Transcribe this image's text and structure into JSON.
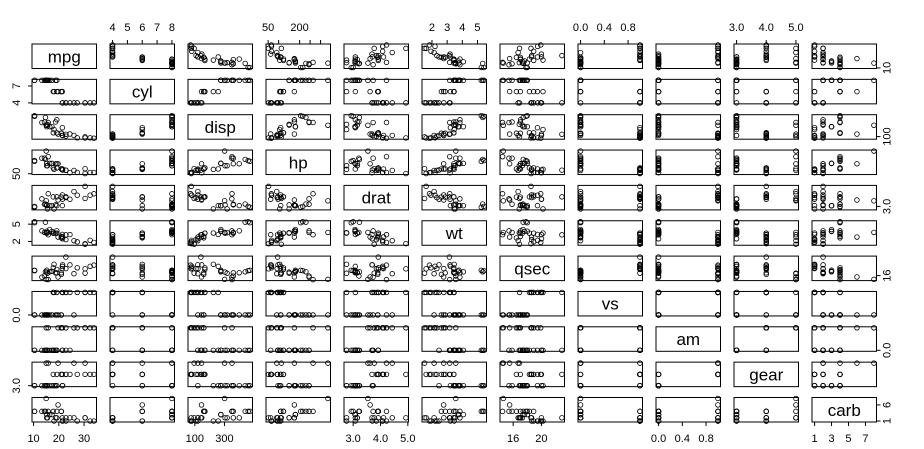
{
  "chart_data": {
    "type": "scatter",
    "title": "",
    "variables": [
      "mpg",
      "cyl",
      "disp",
      "hp",
      "drat",
      "wt",
      "qsec",
      "vs",
      "am",
      "gear",
      "carb"
    ],
    "axis_ticks": {
      "top": [
        {
          "col": 1,
          "labels": [
            "4",
            "5",
            "6",
            "7",
            "8"
          ],
          "values": [
            4,
            5,
            6,
            7,
            8
          ]
        },
        {
          "col": 3,
          "labels": [
            "50",
            "",
            "200",
            "",
            ""
          ],
          "values": [
            50,
            100,
            200,
            250,
            300
          ]
        },
        {
          "col": 5,
          "labels": [
            "2",
            "3",
            "4",
            "5"
          ],
          "values": [
            2,
            3,
            4,
            5
          ]
        },
        {
          "col": 7,
          "labels": [
            "0.0",
            "0.4",
            "0.8"
          ],
          "values": [
            0,
            0.4,
            0.8
          ]
        },
        {
          "col": 9,
          "labels": [
            "3.0",
            "4.0",
            "5.0"
          ],
          "values": [
            3,
            4,
            5
          ]
        }
      ],
      "bottom": [
        {
          "col": 0,
          "labels": [
            "10",
            "20",
            "30"
          ],
          "values": [
            10,
            20,
            30
          ]
        },
        {
          "col": 2,
          "labels": [
            "100",
            "300"
          ],
          "values": [
            100,
            300
          ]
        },
        {
          "col": 4,
          "labels": [
            "3.0",
            "4.0",
            "5.0"
          ],
          "values": [
            3,
            4,
            5
          ]
        },
        {
          "col": 6,
          "labels": [
            "16",
            "20"
          ],
          "values": [
            16,
            20
          ]
        },
        {
          "col": 8,
          "labels": [
            "0.0",
            "0.4",
            "0.8"
          ],
          "values": [
            0,
            0.4,
            0.8
          ]
        },
        {
          "col": 10,
          "labels": [
            "1",
            "3",
            "5",
            "7"
          ],
          "values": [
            1,
            3,
            5,
            7
          ]
        }
      ],
      "left": [
        {
          "row": 1,
          "labels": [
            "4",
            "7"
          ],
          "values": [
            4,
            7
          ]
        },
        {
          "row": 3,
          "labels": [
            "50"
          ],
          "values": [
            50
          ]
        },
        {
          "row": 5,
          "labels": [
            "2",
            "5"
          ],
          "values": [
            2,
            5
          ]
        },
        {
          "row": 7,
          "labels": [
            "0.0"
          ],
          "values": [
            0
          ]
        },
        {
          "row": 9,
          "labels": [
            "3.0"
          ],
          "values": [
            3
          ]
        }
      ],
      "right": [
        {
          "row": 0,
          "labels": [
            "10"
          ],
          "values": [
            10
          ]
        },
        {
          "row": 2,
          "labels": [
            "100"
          ],
          "values": [
            100
          ]
        },
        {
          "row": 4,
          "labels": [
            "3.0"
          ],
          "values": [
            3
          ]
        },
        {
          "row": 6,
          "labels": [
            "16"
          ],
          "values": [
            16
          ]
        },
        {
          "row": 8,
          "labels": [
            "0.0"
          ],
          "values": [
            0
          ]
        },
        {
          "row": 10,
          "labels": [
            "1",
            "6"
          ],
          "values": [
            1,
            6
          ]
        }
      ]
    },
    "data": {
      "mpg": [
        21.0,
        21.0,
        22.8,
        21.4,
        18.7,
        18.1,
        14.3,
        24.4,
        22.8,
        19.2,
        17.8,
        16.4,
        17.3,
        15.2,
        10.4,
        10.4,
        14.7,
        32.4,
        30.4,
        33.9,
        21.5,
        15.5,
        15.2,
        13.3,
        19.2,
        27.3,
        26.0,
        30.4,
        15.8,
        19.7,
        15.0,
        21.4
      ],
      "cyl": [
        6,
        6,
        4,
        6,
        8,
        6,
        8,
        4,
        4,
        6,
        6,
        8,
        8,
        8,
        8,
        8,
        8,
        4,
        4,
        4,
        4,
        8,
        8,
        8,
        8,
        4,
        4,
        4,
        8,
        6,
        8,
        4
      ],
      "disp": [
        160,
        160,
        108,
        258,
        360,
        225,
        360,
        146.7,
        140.8,
        167.6,
        167.6,
        275.8,
        275.8,
        275.8,
        472,
        460,
        440,
        78.7,
        75.7,
        71.1,
        120.1,
        318,
        304,
        350,
        400,
        79,
        120.3,
        95.1,
        351,
        145,
        301,
        121
      ],
      "hp": [
        110,
        110,
        93,
        110,
        175,
        105,
        245,
        62,
        95,
        123,
        123,
        180,
        180,
        180,
        205,
        215,
        230,
        66,
        52,
        65,
        97,
        150,
        150,
        245,
        175,
        66,
        91,
        113,
        264,
        175,
        335,
        109
      ],
      "drat": [
        3.9,
        3.9,
        3.85,
        3.08,
        3.15,
        2.76,
        3.21,
        3.69,
        3.92,
        3.92,
        3.92,
        3.07,
        3.07,
        3.07,
        2.93,
        3.0,
        3.23,
        4.08,
        4.93,
        4.22,
        3.7,
        2.76,
        3.15,
        3.73,
        3.08,
        4.08,
        4.43,
        3.77,
        4.22,
        3.62,
        3.54,
        4.11
      ],
      "wt": [
        2.62,
        2.875,
        2.32,
        3.215,
        3.44,
        3.46,
        3.57,
        3.19,
        3.15,
        3.44,
        3.44,
        4.07,
        3.73,
        3.78,
        5.25,
        5.424,
        5.345,
        2.2,
        1.615,
        1.835,
        2.465,
        3.52,
        3.435,
        3.84,
        3.845,
        1.935,
        2.14,
        1.513,
        3.17,
        2.77,
        3.57,
        2.78
      ],
      "qsec": [
        16.46,
        17.02,
        18.61,
        19.44,
        17.02,
        20.22,
        15.84,
        20.0,
        22.9,
        18.3,
        18.9,
        17.4,
        17.6,
        18.0,
        17.98,
        17.82,
        17.42,
        19.47,
        18.52,
        19.9,
        20.01,
        16.87,
        17.3,
        15.41,
        17.05,
        18.9,
        16.7,
        16.9,
        14.5,
        15.5,
        14.6,
        18.6
      ],
      "vs": [
        0,
        0,
        1,
        1,
        0,
        1,
        0,
        1,
        1,
        1,
        1,
        0,
        0,
        0,
        0,
        0,
        0,
        1,
        1,
        1,
        1,
        0,
        0,
        0,
        0,
        1,
        0,
        1,
        0,
        0,
        0,
        1
      ],
      "am": [
        1,
        1,
        1,
        0,
        0,
        0,
        0,
        0,
        0,
        0,
        0,
        0,
        0,
        0,
        0,
        0,
        0,
        1,
        1,
        1,
        0,
        0,
        0,
        0,
        0,
        1,
        1,
        1,
        1,
        1,
        1,
        1
      ],
      "gear": [
        4,
        4,
        4,
        3,
        3,
        3,
        3,
        4,
        4,
        4,
        4,
        3,
        3,
        3,
        3,
        3,
        3,
        4,
        4,
        4,
        3,
        3,
        3,
        3,
        3,
        4,
        5,
        5,
        5,
        5,
        5,
        4
      ],
      "carb": [
        4,
        4,
        1,
        1,
        2,
        1,
        4,
        2,
        2,
        4,
        4,
        3,
        3,
        3,
        4,
        4,
        4,
        1,
        2,
        1,
        1,
        2,
        2,
        4,
        2,
        1,
        2,
        2,
        4,
        6,
        8,
        2
      ]
    },
    "grid": false,
    "legend": "none"
  }
}
